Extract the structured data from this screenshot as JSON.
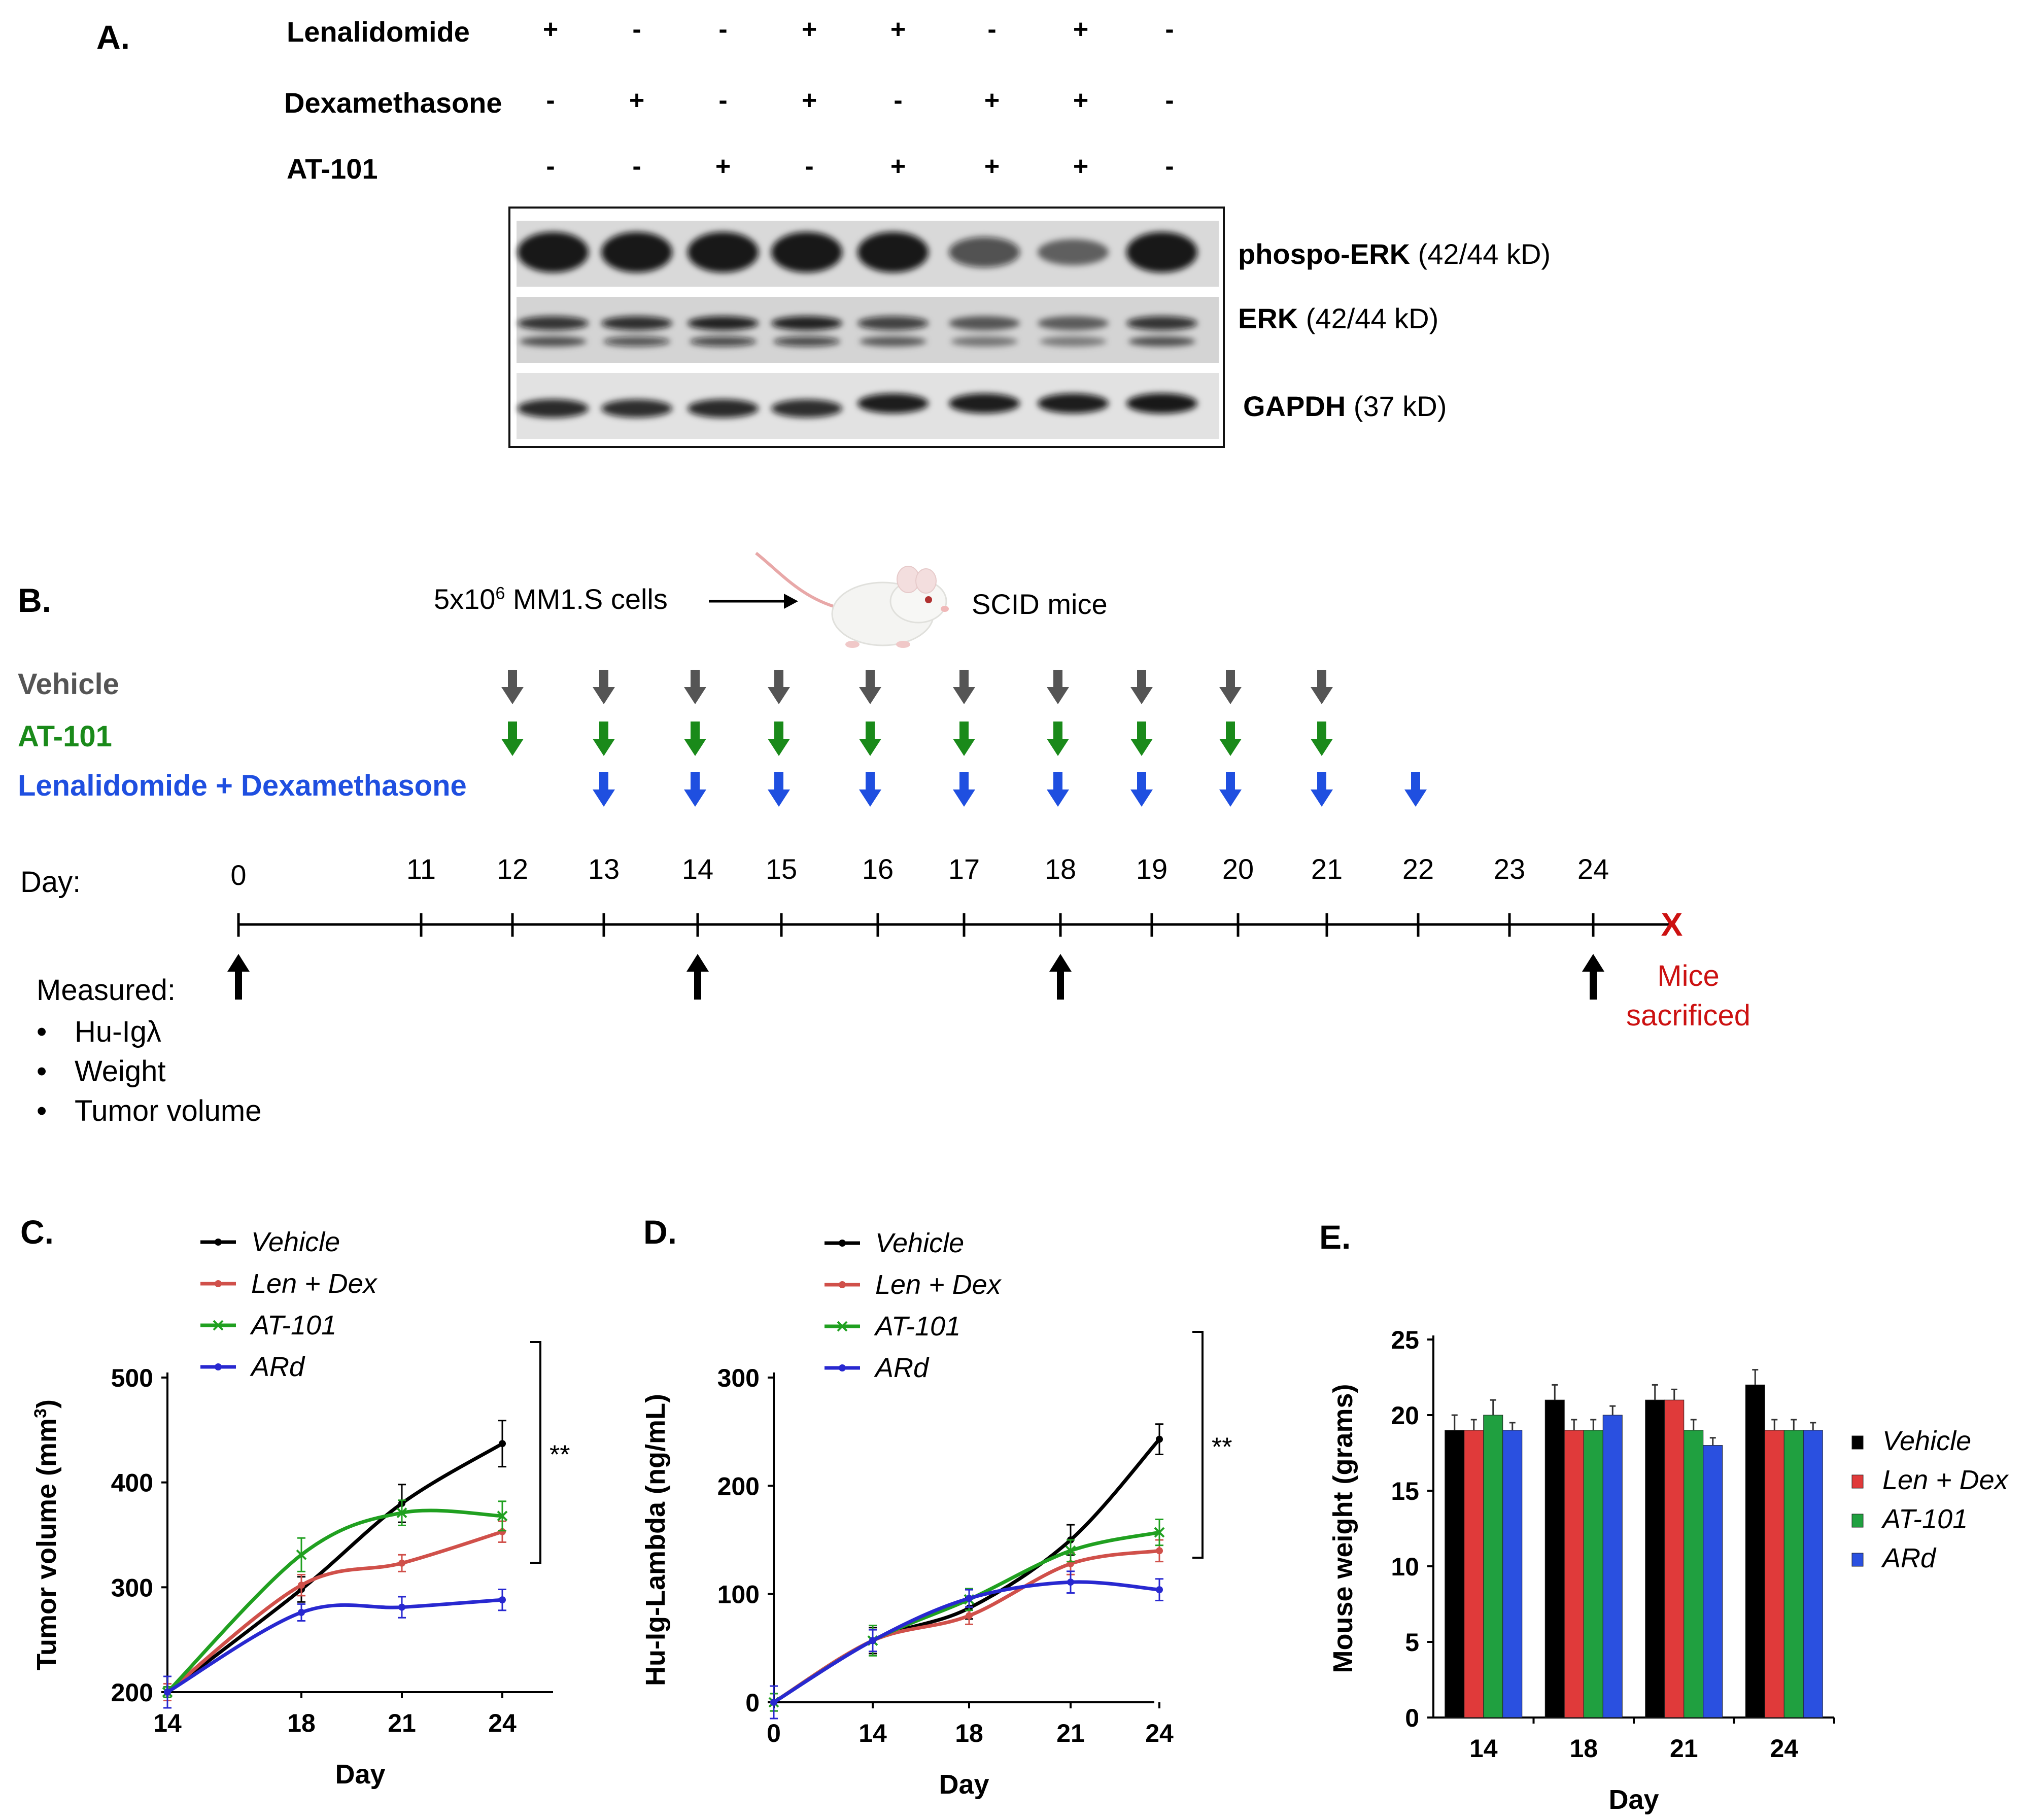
{
  "panelA": {
    "letter": "A.",
    "treatments": [
      {
        "name": "Lenalidomide",
        "signs": [
          "+",
          "-",
          "-",
          "+",
          "+",
          "-",
          "+",
          "-"
        ]
      },
      {
        "name": "Dexamethasone",
        "signs": [
          "-",
          "+",
          "-",
          "+",
          "-",
          "+",
          "+",
          "-"
        ]
      },
      {
        "name": "AT-101",
        "signs": [
          "-",
          "-",
          "+",
          "-",
          "+",
          "+",
          "+",
          "-"
        ]
      }
    ],
    "blot_labels": [
      {
        "protein": "phospo-ERK",
        "size": "(42/44 kD)"
      },
      {
        "protein": "ERK",
        "size": "(42/44 kD)"
      },
      {
        "protein": "GAPDH",
        "size": "(37 kD)"
      }
    ]
  },
  "panelB": {
    "letter": "B.",
    "cells_label": "5x10",
    "cells_exp": "6",
    "cells_suffix": " MM1.S cells",
    "mice_label": "SCID mice",
    "groups": [
      {
        "name": "Vehicle",
        "color": "#555555"
      },
      {
        "name": "AT-101",
        "color": "#1a8a1a"
      },
      {
        "name": "Lenalidomide + Dexamethasone",
        "color": "#1f4fe0"
      }
    ],
    "day_label": "Day:",
    "days": [
      "0",
      "11",
      "12",
      "13",
      "14",
      "15",
      "16",
      "17",
      "18",
      "19",
      "20",
      "21",
      "22",
      "23",
      "24"
    ],
    "measured_title": "Measured:",
    "measured_items": [
      "Hu-Igλ",
      "Weight",
      "Tumor volume"
    ],
    "end_marker": "X",
    "end_label_1": "Mice",
    "end_label_2": "sacrificed",
    "end_color": "#cc1111"
  },
  "chart_data": [
    {
      "panel": "C.",
      "type": "line",
      "title": "",
      "xlabel": "Day",
      "ylabel": "Tumor volume (mm3)",
      "x": [
        14,
        18,
        21,
        24
      ],
      "ylim": [
        200,
        500
      ],
      "yticks": [
        200,
        300,
        400,
        500
      ],
      "series": [
        {
          "name": "Vehicle",
          "color": "#000000",
          "marker": "dot",
          "values": [
            200,
            298,
            380,
            437
          ],
          "errors": [
            5,
            12,
            18,
            22
          ]
        },
        {
          "name": "Len + Dex",
          "color": "#d0504a",
          "marker": "dot",
          "values": [
            200,
            302,
            323,
            353
          ],
          "errors": [
            8,
            10,
            8,
            10
          ]
        },
        {
          "name": "AT-101",
          "color": "#20a020",
          "marker": "x",
          "values": [
            200,
            331,
            371,
            368
          ],
          "errors": [
            5,
            16,
            12,
            14
          ]
        },
        {
          "name": "ARd",
          "color": "#2828d0",
          "marker": "dot",
          "values": [
            200,
            276,
            281,
            288
          ],
          "errors": [
            15,
            8,
            10,
            10
          ]
        }
      ],
      "significance": "**"
    },
    {
      "panel": "D.",
      "type": "line",
      "title": "",
      "xlabel": "Day",
      "ylabel": "Hu-Ig-Lambda (ng/mL)",
      "x": [
        0,
        14,
        18,
        21,
        24
      ],
      "ylim": [
        0,
        300
      ],
      "yticks": [
        0,
        100,
        200,
        300
      ],
      "series": [
        {
          "name": "Vehicle",
          "color": "#000000",
          "marker": "dot",
          "values": [
            0,
            57,
            87,
            150,
            243
          ],
          "errors": [
            8,
            12,
            10,
            14,
            14
          ]
        },
        {
          "name": "Len + Dex",
          "color": "#d0504a",
          "marker": "dot",
          "values": [
            0,
            57,
            80,
            128,
            140
          ],
          "errors": [
            8,
            10,
            8,
            10,
            10
          ]
        },
        {
          "name": "AT-101",
          "color": "#20a020",
          "marker": "x",
          "values": [
            0,
            57,
            95,
            140,
            157
          ],
          "errors": [
            8,
            14,
            10,
            10,
            12
          ]
        },
        {
          "name": "ARd",
          "color": "#2828d0",
          "marker": "dot",
          "values": [
            0,
            57,
            96,
            111,
            104
          ],
          "errors": [
            15,
            10,
            8,
            10,
            10
          ]
        }
      ],
      "significance": "**"
    },
    {
      "panel": "E.",
      "type": "bar",
      "title": "",
      "xlabel": "Day",
      "ylabel": "Mouse weight (grams)",
      "categories": [
        "14",
        "18",
        "21",
        "24"
      ],
      "ylim": [
        0,
        25
      ],
      "yticks": [
        0,
        5,
        10,
        15,
        20,
        25
      ],
      "series": [
        {
          "name": "Vehicle",
          "color": "#000000",
          "values": [
            19,
            21,
            21,
            22
          ],
          "errors": [
            1,
            1,
            1,
            1
          ]
        },
        {
          "name": "Len + Dex",
          "color": "#e03a3a",
          "values": [
            19,
            19,
            21,
            19
          ],
          "errors": [
            0.7,
            0.7,
            0.7,
            0.7
          ]
        },
        {
          "name": "AT-101",
          "color": "#20a040",
          "values": [
            20,
            19,
            19,
            19
          ],
          "errors": [
            1,
            0.7,
            0.7,
            0.7
          ]
        },
        {
          "name": "ARd",
          "color": "#2a50e0",
          "values": [
            19,
            20,
            18,
            19
          ],
          "errors": [
            0.5,
            0.6,
            0.5,
            0.5
          ]
        }
      ]
    }
  ]
}
